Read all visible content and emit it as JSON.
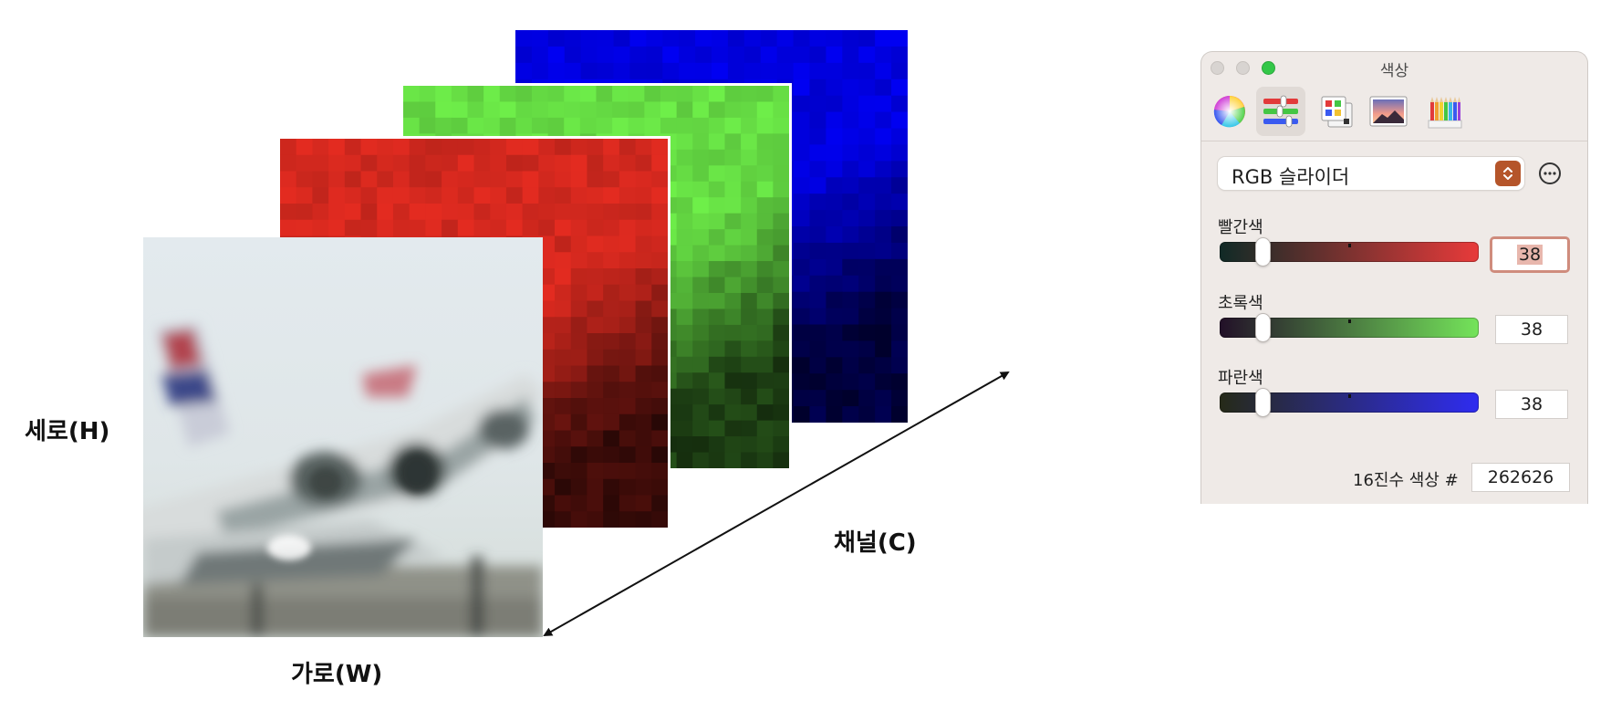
{
  "diagram": {
    "labels": {
      "height": "세로(H)",
      "width": "가로(W)",
      "channel": "채널(C)"
    },
    "layer_colors": {
      "blue": "#0000e0",
      "green": "#66dd44",
      "red": "#d2281e"
    }
  },
  "color_panel": {
    "title": "색상",
    "mode": "RGB 슬라이더",
    "channels": [
      {
        "label": "빨간색",
        "value": "38"
      },
      {
        "label": "초록색",
        "value": "38"
      },
      {
        "label": "파란색",
        "value": "38"
      }
    ],
    "hex_label": "16진수 색상 #",
    "hex_value": "262626"
  }
}
